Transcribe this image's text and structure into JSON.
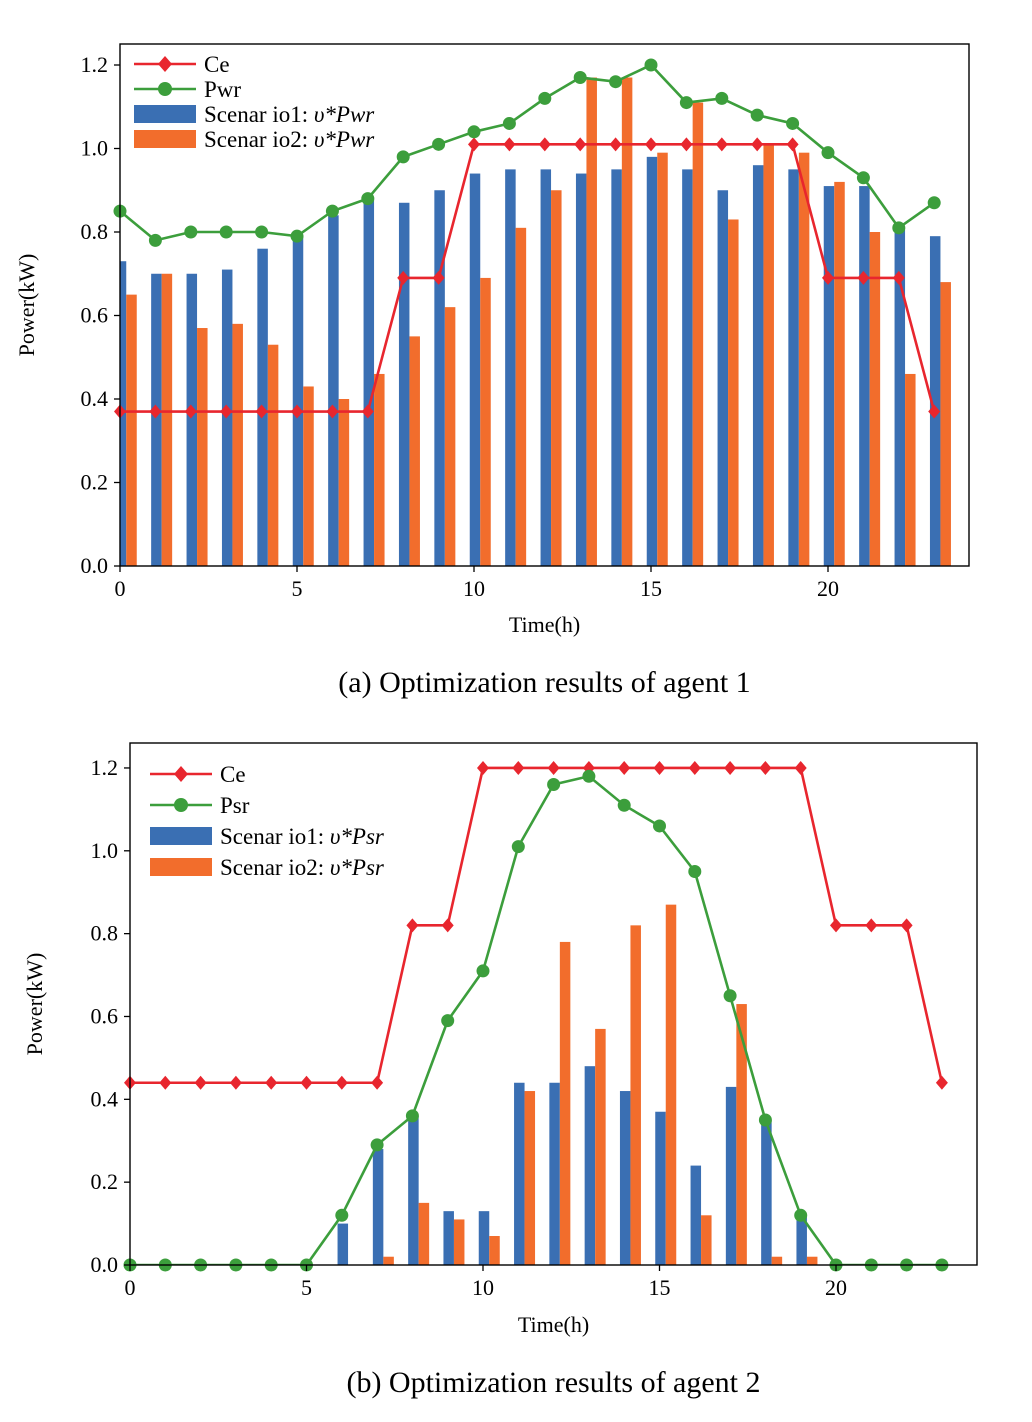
{
  "chart_data": [
    {
      "type": "bar",
      "caption": "(a) Optimization results of agent 1",
      "xlabel": "Time(h)",
      "ylabel": "Power(kW)",
      "xlim": [
        0,
        24
      ],
      "ylim": [
        0,
        1.25
      ],
      "x_ticks": [
        "0",
        "5",
        "10",
        "15",
        "20"
      ],
      "y_ticks": [
        "0.0",
        "0.2",
        "0.4",
        "0.6",
        "0.8",
        "1.0",
        "1.2"
      ],
      "x": [
        0,
        1,
        2,
        3,
        4,
        5,
        6,
        7,
        8,
        9,
        10,
        11,
        12,
        13,
        14,
        15,
        16,
        17,
        18,
        19,
        20,
        21,
        22,
        23
      ],
      "series": [
        {
          "name": "Ce",
          "type": "line",
          "marker": "diamond",
          "color": "#e8262e",
          "values": [
            0.37,
            0.37,
            0.37,
            0.37,
            0.37,
            0.37,
            0.37,
            0.37,
            0.69,
            0.69,
            1.01,
            1.01,
            1.01,
            1.01,
            1.01,
            1.01,
            1.01,
            1.01,
            1.01,
            1.01,
            0.69,
            0.69,
            0.69,
            0.37
          ]
        },
        {
          "name": "Pwr",
          "type": "line",
          "marker": "circle",
          "color": "#3c9e3c",
          "values": [
            0.85,
            0.78,
            0.8,
            0.8,
            0.8,
            0.79,
            0.85,
            0.88,
            0.98,
            1.01,
            1.04,
            1.06,
            1.12,
            1.17,
            1.16,
            1.2,
            1.11,
            1.12,
            1.08,
            1.06,
            0.99,
            0.93,
            0.81,
            0.87
          ]
        },
        {
          "name": "Scenar io1: ",
          "math": "υ*Pwr",
          "type": "bar",
          "color": "#3a6fb3",
          "values": [
            0.73,
            0.7,
            0.7,
            0.71,
            0.76,
            0.79,
            0.84,
            0.88,
            0.87,
            0.9,
            0.94,
            0.95,
            0.95,
            0.94,
            0.95,
            0.98,
            0.95,
            0.9,
            0.96,
            0.95,
            0.91,
            0.91,
            0.81,
            0.79
          ]
        },
        {
          "name": "Scenar io2: ",
          "math": "υ*Pwr",
          "type": "bar",
          "color": "#f26d2c",
          "values": [
            0.65,
            0.7,
            0.57,
            0.58,
            0.53,
            0.43,
            0.4,
            0.46,
            0.55,
            0.62,
            0.69,
            0.81,
            0.9,
            1.17,
            1.17,
            0.99,
            1.11,
            0.83,
            1.01,
            0.99,
            0.92,
            0.8,
            0.46,
            0.68
          ]
        }
      ]
    },
    {
      "type": "bar",
      "caption": "(b) Optimization results of agent 2",
      "xlabel": "Time(h)",
      "ylabel": "Power(kW)",
      "xlim": [
        0,
        24
      ],
      "ylim": [
        0,
        1.25
      ],
      "x_ticks": [
        "0",
        "5",
        "10",
        "15",
        "20"
      ],
      "y_ticks": [
        "0.0",
        "0.2",
        "0.4",
        "0.6",
        "0.8",
        "1.0",
        "1.2"
      ],
      "x": [
        0,
        1,
        2,
        3,
        4,
        5,
        6,
        7,
        8,
        9,
        10,
        11,
        12,
        13,
        14,
        15,
        16,
        17,
        18,
        19,
        20,
        21,
        22,
        23
      ],
      "series": [
        {
          "name": "Ce",
          "type": "line",
          "marker": "diamond",
          "color": "#e8262e",
          "values": [
            0.44,
            0.44,
            0.44,
            0.44,
            0.44,
            0.44,
            0.44,
            0.44,
            0.82,
            0.82,
            1.2,
            1.2,
            1.2,
            1.2,
            1.2,
            1.2,
            1.2,
            1.2,
            1.2,
            1.2,
            0.82,
            0.82,
            0.82,
            0.44
          ]
        },
        {
          "name": "Psr",
          "type": "line",
          "marker": "circle",
          "color": "#3c9e3c",
          "values": [
            0,
            0,
            0,
            0,
            0,
            0,
            0.12,
            0.29,
            0.36,
            0.59,
            0.71,
            1.01,
            1.16,
            1.18,
            1.11,
            1.06,
            0.95,
            0.65,
            0.35,
            0.12,
            0,
            0,
            0,
            0
          ]
        },
        {
          "name": "Scenar io1: ",
          "math": "υ*Psr",
          "type": "bar",
          "color": "#3a6fb3",
          "values": [
            0,
            0,
            0,
            0,
            0,
            0,
            0.1,
            0.28,
            0.36,
            0.13,
            0.13,
            0.44,
            0.44,
            0.48,
            0.42,
            0.37,
            0.24,
            0.43,
            0.35,
            0.12,
            0,
            0,
            0,
            0
          ]
        },
        {
          "name": "Scenar io2: ",
          "math": "υ*Psr",
          "type": "bar",
          "color": "#f26d2c",
          "values": [
            0,
            0,
            0,
            0,
            0,
            0,
            0,
            0.02,
            0.15,
            0.11,
            0.07,
            0.42,
            0.78,
            0.57,
            0.82,
            0.87,
            0.12,
            0.63,
            0.02,
            0.02,
            0,
            0,
            0,
            0
          ]
        }
      ]
    }
  ]
}
